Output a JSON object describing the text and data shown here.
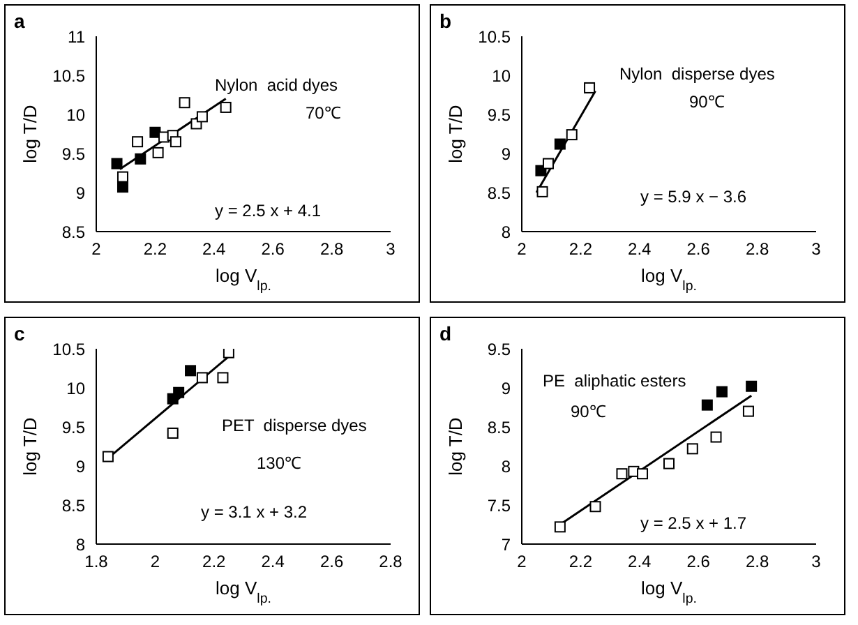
{
  "chart_data": [
    {
      "type": "scatter",
      "title": "a",
      "xlabel": "log V$_{lp.}$",
      "ylabel": "log T/D",
      "xlim": [
        2,
        3
      ],
      "xticks": [
        2,
        2.2,
        2.4,
        2.6,
        2.8,
        3
      ],
      "ylim": [
        8.5,
        11
      ],
      "yticks": [
        8.5,
        9,
        9.5,
        10,
        10.5,
        11
      ],
      "marker": "square",
      "annotations": [
        "Nylon  acid dyes",
        "70℃",
        "y = 2.5 x + 4.1"
      ],
      "series": [
        {
          "color": "#000000",
          "x": [
            2.07,
            2.09,
            2.15,
            2.2
          ],
          "values": [
            9.37,
            9.07,
            9.43,
            9.77
          ]
        },
        {
          "color": "#ffffff",
          "x": [
            2.09,
            2.14,
            2.21,
            2.23,
            2.26,
            2.27,
            2.3,
            2.34,
            2.36,
            2.44
          ],
          "values": [
            9.2,
            9.65,
            9.51,
            9.71,
            9.73,
            9.65,
            10.15,
            9.88,
            9.97,
            10.09
          ]
        },
        {
          "type": "line",
          "color": "#000000",
          "marker": "none",
          "x": [
            2.08,
            2.44
          ],
          "values": [
            9.3,
            10.2
          ]
        }
      ]
    },
    {
      "type": "scatter",
      "title": "b",
      "xlabel": "log V$_{lp.}$",
      "ylabel": "log T/D",
      "xlim": [
        2,
        3
      ],
      "xticks": [
        2,
        2.2,
        2.4,
        2.6,
        2.8,
        3
      ],
      "ylim": [
        8,
        10.5
      ],
      "yticks": [
        8,
        8.5,
        9,
        9.5,
        10,
        10.5
      ],
      "marker": "square",
      "annotations": [
        "Nylon  disperse dyes",
        "90℃",
        "y = 5.9 x − 3.6"
      ],
      "series": [
        {
          "color": "#000000",
          "x": [
            2.065,
            2.09,
            2.13
          ],
          "values": [
            8.78,
            null,
            9.12
          ]
        },
        {
          "color": "#ffffff",
          "x": [
            2.07,
            2.09,
            2.17,
            2.23
          ],
          "values": [
            8.51,
            8.87,
            9.24,
            9.84
          ]
        },
        {
          "type": "line",
          "color": "#000000",
          "marker": "none",
          "x": [
            2.05,
            2.25
          ],
          "values": [
            8.5,
            9.8
          ]
        }
      ]
    },
    {
      "type": "scatter",
      "title": "c",
      "xlabel": "log V$_{lp.}$",
      "ylabel": "log T/D",
      "xlim": [
        1.8,
        2.8
      ],
      "xticks": [
        1.8,
        2,
        2.2,
        2.4,
        2.6,
        2.8
      ],
      "ylim": [
        8,
        10.5
      ],
      "yticks": [
        8,
        8.5,
        9,
        9.5,
        10,
        10.5
      ],
      "marker": "square",
      "annotations": [
        "PET  disperse dyes",
        "130℃",
        "y = 3.1 x + 3.2"
      ],
      "series": [
        {
          "color": "#000000",
          "x": [
            2.06,
            2.08,
            2.12
          ],
          "values": [
            9.86,
            9.94,
            10.22
          ]
        },
        {
          "color": "#ffffff",
          "x": [
            1.84,
            2.06,
            2.16,
            2.23,
            2.25
          ],
          "values": [
            9.12,
            9.42,
            10.13,
            10.13,
            10.45
          ]
        },
        {
          "type": "line",
          "color": "#000000",
          "marker": "none",
          "x": [
            1.84,
            2.25
          ],
          "values": [
            9.1,
            10.4
          ]
        }
      ]
    },
    {
      "type": "scatter",
      "title": "d",
      "xlabel": "log V$_{lp.}$",
      "ylabel": "log T/D",
      "xlim": [
        2,
        3
      ],
      "xticks": [
        2,
        2.2,
        2.4,
        2.6,
        2.8,
        3
      ],
      "ylim": [
        7,
        9.5
      ],
      "yticks": [
        7,
        7.5,
        8,
        8.5,
        9,
        9.5
      ],
      "marker": "square",
      "annotations": [
        "PE  aliphatic esters",
        "90℃",
        "y = 2.5 x + 1.7"
      ],
      "series": [
        {
          "color": "#000000",
          "x": [
            2.63,
            2.68,
            2.78
          ],
          "values": [
            8.78,
            8.95,
            9.02
          ]
        },
        {
          "color": "#ffffff",
          "x": [
            2.13,
            2.25,
            2.34,
            2.38,
            2.41,
            2.5,
            2.58,
            2.66,
            2.77
          ],
          "values": [
            7.22,
            7.48,
            7.9,
            7.93,
            7.9,
            8.03,
            8.22,
            8.37,
            8.7
          ]
        },
        {
          "type": "line",
          "color": "#000000",
          "marker": "none",
          "x": [
            2.13,
            2.78
          ],
          "values": [
            7.25,
            8.9
          ]
        }
      ]
    }
  ]
}
